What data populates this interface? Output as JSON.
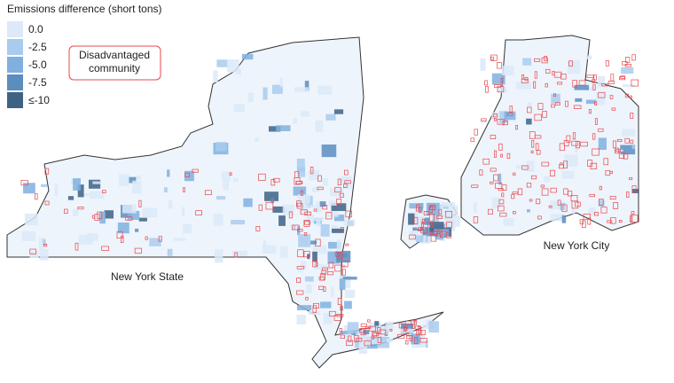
{
  "legend": {
    "title": "Emissions difference (short tons)",
    "items": [
      {
        "label": "0.0",
        "color": "#dbe9f8"
      },
      {
        "label": "-2.5",
        "color": "#a9cbee"
      },
      {
        "label": "-5.0",
        "color": "#7fb0e0"
      },
      {
        "label": "-7.5",
        "color": "#5b8dbf"
      },
      {
        "label": "≤-10",
        "color": "#3d6286"
      }
    ]
  },
  "annotation": {
    "text": "Disadvantaged community",
    "color": "#e8474c"
  },
  "maps": [
    {
      "label": "New York State"
    },
    {
      "label": "New York City"
    }
  ]
}
